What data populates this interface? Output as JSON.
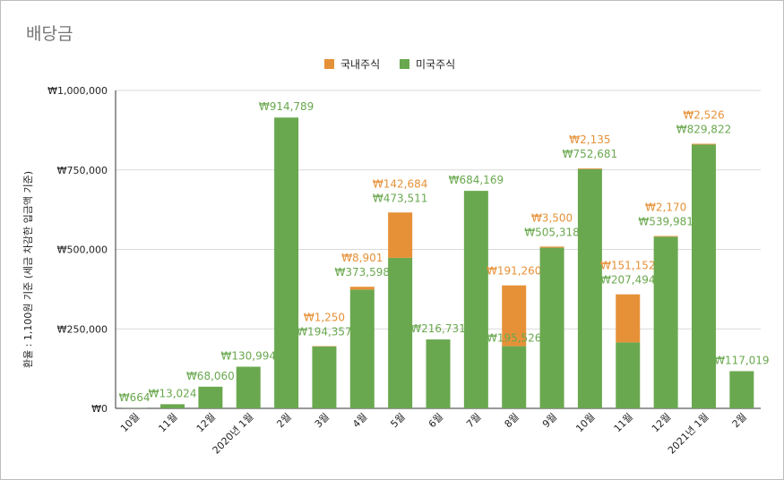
{
  "chart_data": {
    "type": "bar",
    "stacked": true,
    "title": "배당금",
    "ylabel": "환율 : 1,100원 기준 (세금 차감한 입금액 기준)",
    "xlabel": "",
    "ylim": [
      0,
      1000000
    ],
    "yticks": [
      0,
      250000,
      500000,
      750000,
      1000000
    ],
    "ytick_labels": [
      "₩0",
      "₩250,000",
      "₩500,000",
      "₩750,000",
      "₩1,000,000"
    ],
    "legend_position": "top-center",
    "categories": [
      "10월",
      "11월",
      "12월",
      "2020년 1월",
      "2월",
      "3월",
      "4월",
      "5월",
      "6월",
      "7월",
      "8월",
      "9월",
      "10월",
      "11월",
      "12월",
      "2021년 1월",
      "2월"
    ],
    "series": [
      {
        "name": "미국주식",
        "color": "#6aa84f",
        "values": [
          664,
          13024,
          68060,
          130994,
          914789,
          194357,
          373598,
          473511,
          216731,
          684169,
          195526,
          505318,
          752681,
          207494,
          539981,
          829822,
          117019
        ],
        "labels": [
          "₩664",
          "₩13,024",
          "₩68,060",
          "₩130,994",
          "₩914,789",
          "₩194,357",
          "₩373,598",
          "₩473,511",
          "₩216,731",
          "₩684,169",
          "₩195,526",
          "₩505,318",
          "₩752,681",
          "₩207,494",
          "₩539,981",
          "₩829,822",
          "₩117,019"
        ]
      },
      {
        "name": "국내주식",
        "color": "#e69138",
        "values": [
          0,
          0,
          0,
          0,
          0,
          1250,
          8901,
          142684,
          0,
          0,
          191260,
          3500,
          2135,
          151152,
          2170,
          2526,
          0
        ],
        "labels": [
          "",
          "",
          "",
          "",
          "",
          "₩1,250",
          "₩8,901",
          "₩142,684",
          "",
          "",
          "₩191,260",
          "₩3,500",
          "₩2,135",
          "₩151,152",
          "₩2,170",
          "₩2,526",
          ""
        ]
      }
    ]
  }
}
